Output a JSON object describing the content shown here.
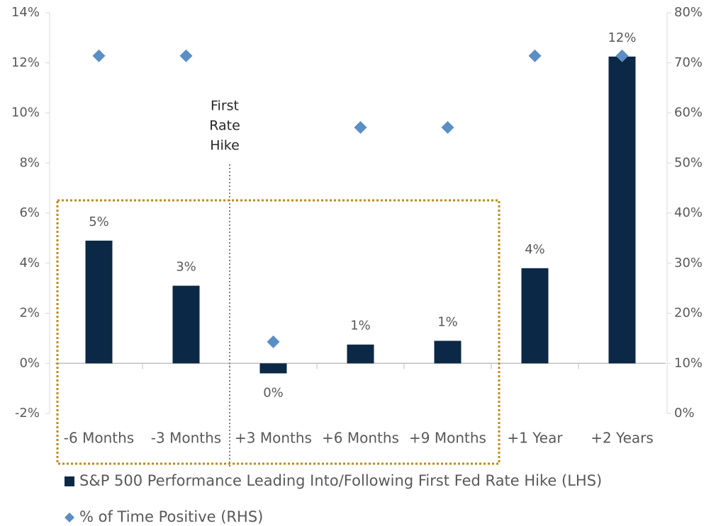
{
  "chart_data": {
    "type": "bar",
    "categories": [
      "-6 Months",
      "-3 Months",
      "+3 Months",
      "+6 Months",
      "+9 Months",
      "+1 Year",
      "+2 Years"
    ],
    "series": [
      {
        "name": "S&P 500 Performance Leading Into/Following First Fed Rate Hike (LHS)",
        "type": "bar",
        "color": "#0c2847",
        "values": [
          4.9,
          3.1,
          -0.4,
          0.75,
          0.9,
          3.8,
          12.25
        ],
        "value_labels": [
          "5%",
          "3%",
          "0%",
          "1%",
          "1%",
          "4%",
          "12%"
        ]
      },
      {
        "name": "% of Time Positive (RHS)",
        "type": "scatter",
        "axis": "y2",
        "color": "#5b8ec4",
        "values": [
          71.4,
          71.4,
          14.3,
          57.1,
          57.1,
          71.4,
          71.4
        ]
      }
    ],
    "annotation": [
      "First",
      "Rate",
      "Hike"
    ],
    "ylim": [
      -2,
      14
    ],
    "yticks": [
      {
        "value": -2,
        "label": "-2%"
      },
      {
        "value": 0,
        "label": "0%"
      },
      {
        "value": 2,
        "label": "2%"
      },
      {
        "value": 4,
        "label": "4%"
      },
      {
        "value": 6,
        "label": "6%"
      },
      {
        "value": 8,
        "label": "8%"
      },
      {
        "value": 10,
        "label": "10%"
      },
      {
        "value": 12,
        "label": "12%"
      },
      {
        "value": 14,
        "label": "14%"
      }
    ],
    "y2lim": [
      0,
      80
    ],
    "y2ticks": [
      {
        "value": 0,
        "label": "0%"
      },
      {
        "value": 10,
        "label": "10%"
      },
      {
        "value": 20,
        "label": "20%"
      },
      {
        "value": 30,
        "label": "30%"
      },
      {
        "value": 40,
        "label": "40%"
      },
      {
        "value": 50,
        "label": "50%"
      },
      {
        "value": 60,
        "label": "60%"
      },
      {
        "value": 70,
        "label": "70%"
      },
      {
        "value": 80,
        "label": "80%"
      }
    ],
    "grid": false
  }
}
